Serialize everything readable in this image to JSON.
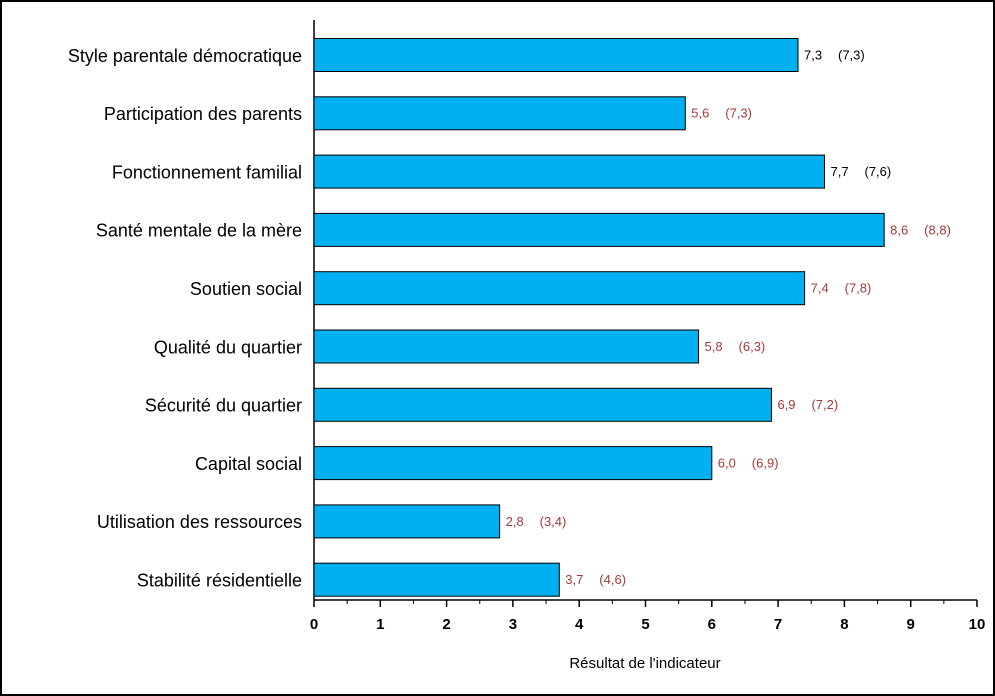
{
  "chart_data": {
    "type": "bar",
    "orientation": "horizontal",
    "categories": [
      "Style parentale démocratique",
      "Participation des parents",
      "Fonctionnement familial",
      "Santé mentale de la mère",
      "Soutien social",
      "Qualité du quartier",
      "Sécurité du quartier",
      "Capital social",
      "Utilisation des ressources",
      "Stabilité résidentielle"
    ],
    "values": [
      7.3,
      5.6,
      7.7,
      8.6,
      7.4,
      5.8,
      6.9,
      6.0,
      2.8,
      3.7
    ],
    "value_labels": [
      "7,3",
      "5,6",
      "7,7",
      "8,6",
      "7,4",
      "5,8",
      "6,9",
      "6,0",
      "2,8",
      "3,7"
    ],
    "reference_values": [
      7.3,
      7.3,
      7.6,
      8.8,
      7.8,
      6.3,
      7.2,
      6.9,
      3.4,
      4.6
    ],
    "reference_labels": [
      "(7,3)",
      "(7,3)",
      "(7,6)",
      "(8,8)",
      "(7,8)",
      "(6,3)",
      "(7,2)",
      "(6,9)",
      "(3,4)",
      "(4,6)"
    ],
    "label_colors": [
      "#000000",
      "#a33a3a",
      "#000000",
      "#a33a3a",
      "#a33a3a",
      "#a33a3a",
      "#a33a3a",
      "#a33a3a",
      "#a33a3a",
      "#a33a3a"
    ],
    "color": "#00b0f0",
    "xlabel": "Résultat de l'indicateur",
    "xlim": [
      0,
      10
    ],
    "xticks": [
      0,
      1,
      2,
      3,
      4,
      5,
      6,
      7,
      8,
      9,
      10
    ],
    "xminorticks": [
      0.5,
      1.5,
      2.5,
      3.5,
      4.5,
      5.5,
      6.5,
      7.5,
      8.5,
      9.5
    ]
  }
}
